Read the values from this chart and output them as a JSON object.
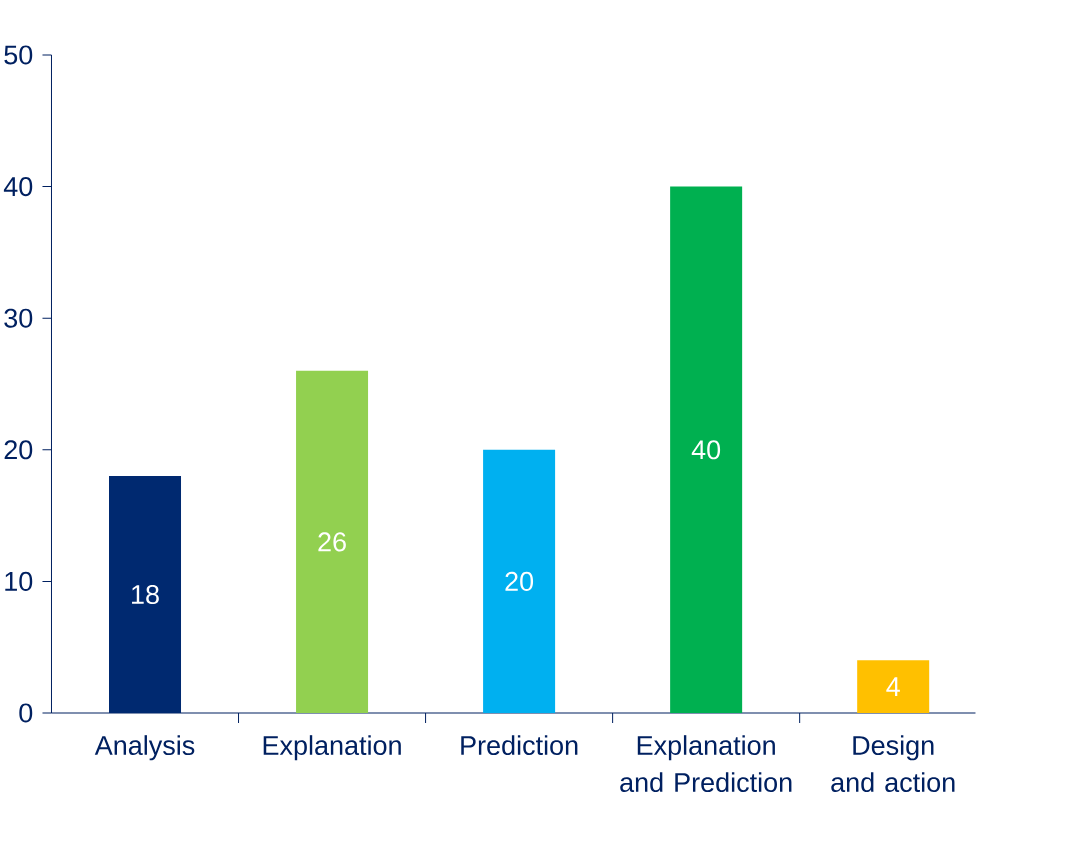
{
  "chart_data": {
    "type": "bar",
    "categories": [
      "Analysis",
      "Explanation",
      "Prediction",
      "Explanation and Prediction",
      "Design and action"
    ],
    "values": [
      18,
      26,
      20,
      40,
      4
    ],
    "colors": [
      "#002970",
      "#92d050",
      "#00b0f0",
      "#00b050",
      "#ffc000"
    ],
    "ylim": [
      0,
      50
    ],
    "yticks": [
      0,
      10,
      20,
      30,
      40,
      50
    ],
    "data_labels": true
  }
}
